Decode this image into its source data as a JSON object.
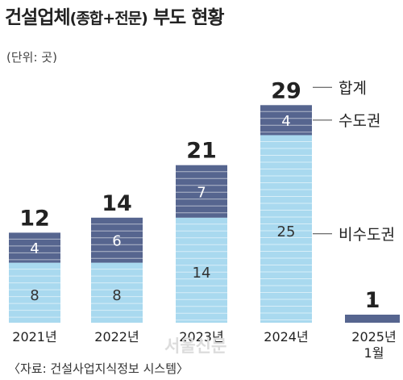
{
  "title": {
    "main": "건설업체",
    "paren": "(종합+전문)",
    "rest": " 부도 현황"
  },
  "unit_label": "(단위: 곳)",
  "source": "〈자료: 건설사업지식정보 시스템〉",
  "watermark": "서울신문",
  "colors": {
    "top_segment": "#56658f",
    "bottom_segment": "#a9d9ef",
    "stripe": "#ffffff",
    "total_text": "#222222",
    "leader_line": "#444444"
  },
  "chart_data": {
    "type": "bar",
    "stacked": true,
    "categories": [
      "2021년",
      "2022년",
      "2023년",
      "2024년",
      "2025년 1월"
    ],
    "series": [
      {
        "name": "비수도권",
        "values": [
          8,
          8,
          14,
          25,
          1
        ]
      },
      {
        "name": "수도권",
        "values": [
          4,
          6,
          7,
          4,
          0
        ]
      }
    ],
    "totals": [
      12,
      14,
      21,
      29,
      1
    ],
    "total_label": "합계",
    "xlabel": "",
    "ylabel": "",
    "ylim": [
      0,
      30
    ],
    "grid": false,
    "legend": "right, callout labels"
  }
}
